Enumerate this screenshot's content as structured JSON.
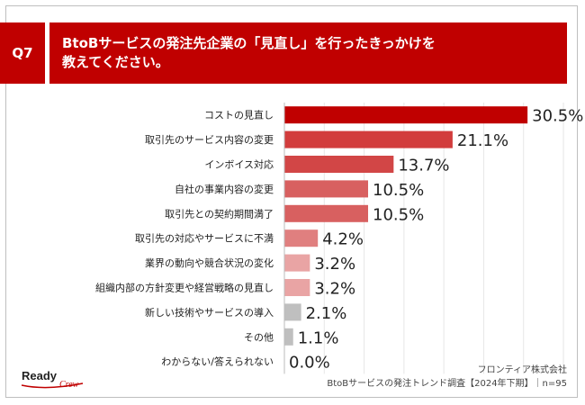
{
  "header": {
    "question_no": "Q7",
    "title_line1": "BtoBサービスの発注先企業の「見直し」を行ったきっかけを",
    "title_line2": "教えてください。"
  },
  "chart_data": {
    "type": "bar",
    "orientation": "horizontal",
    "categories": [
      "コストの見直し",
      "取引先のサービス内容の変更",
      "インボイス対応",
      "自社の事業内容の変更",
      "取引先との契約期間満了",
      "取引先の対応やサービスに不満",
      "業界の動向や競合状況の変化",
      "組織内部の方針変更や経営戦略の見直し",
      "新しい技術やサービスの導入",
      "その他",
      "わからない/答えられない"
    ],
    "values": [
      30.5,
      21.1,
      13.7,
      10.5,
      10.5,
      4.2,
      3.2,
      3.2,
      2.1,
      1.1,
      0.0
    ],
    "value_labels": [
      "30.5%",
      "21.1%",
      "13.7%",
      "10.5%",
      "10.5%",
      "4.2%",
      "3.2%",
      "3.2%",
      "2.1%",
      "1.1%",
      "0.0%"
    ],
    "colors": [
      "#c00000",
      "#d23c3c",
      "#d24646",
      "#d86060",
      "#d86060",
      "#e07f7f",
      "#e9a4a4",
      "#e9a4a4",
      "#bfbfbf",
      "#bfbfbf",
      "#bfbfbf"
    ],
    "xlim": [
      0,
      35
    ],
    "grid": true
  },
  "footer": {
    "company": "フロンティア株式会社",
    "source": "BtoBサービスの発注トレンド調査【2024年下期】｜n=95"
  },
  "logo": {
    "ready": "Ready",
    "crew": "Crew"
  }
}
